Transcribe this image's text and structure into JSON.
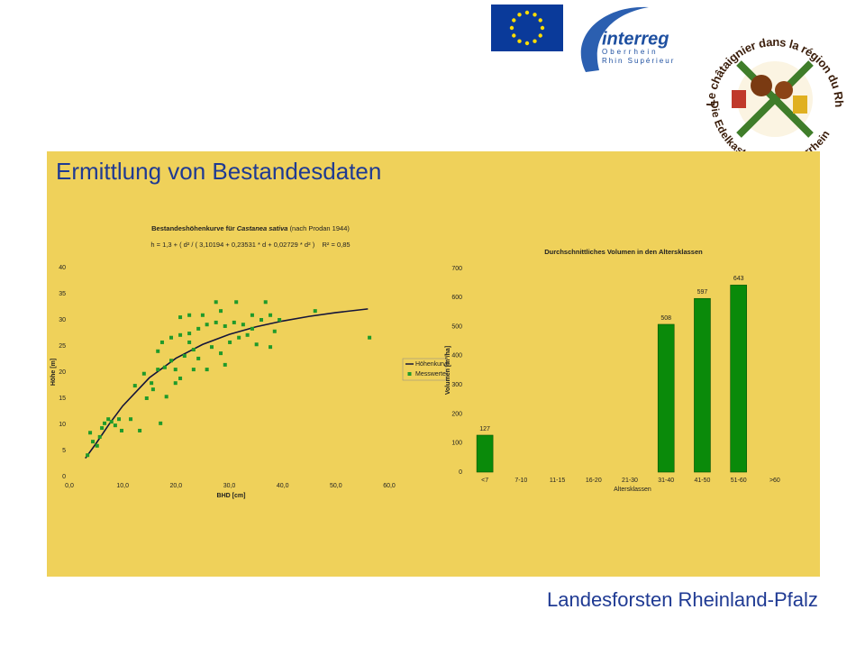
{
  "header": {
    "title": "Ermittlung von Bestandesdaten"
  },
  "footer": "Landesforsten Rheinland-Pfalz",
  "logos": {
    "interreg": "interreg",
    "interreg_region_de": "Oberrhein",
    "interreg_region_fr": "Rhin Supérieur",
    "chestnut_fr": "Le châtaignier dans la région du Rhin supérieur",
    "chestnut_de": "Die Edelkastanie am Oberrhein"
  },
  "chart_data": [
    {
      "type": "scatter",
      "title": "Bestandeshöhenkurve für",
      "title_species": "Castanea sativa",
      "title_note": "(nach Prodan 1944)",
      "subtitle": "h = 1,3 + ( d² / ( 3,10194 + 0,23531 * d + 0,02729 * d² )    R² = 0,85",
      "xlabel": "BHD [cm]",
      "ylabel": "Höhe [m]",
      "xlim": [
        0,
        60
      ],
      "xticks": [
        {
          "value": 0,
          "label": "0,0"
        },
        {
          "value": 10,
          "label": "10,0"
        },
        {
          "value": 20,
          "label": "20,0"
        },
        {
          "value": 30,
          "label": "30,0"
        },
        {
          "value": 40,
          "label": "40,0"
        },
        {
          "value": 50,
          "label": "50,0"
        },
        {
          "value": 60,
          "label": "60,0"
        }
      ],
      "ylim": [
        0,
        40
      ],
      "yticks": [
        0,
        5,
        10,
        15,
        20,
        25,
        30,
        35,
        40
      ],
      "grid": false,
      "legend": "right",
      "series": [
        {
          "name": "Höhenkurve",
          "type": "line",
          "color": "#14143a",
          "x": [
            3,
            5,
            7.5,
            10,
            15,
            20,
            25,
            30,
            35,
            40,
            45,
            50,
            56
          ],
          "values": [
            3.52,
            6.34,
            10.09,
            13.52,
            18.92,
            22.66,
            25.3,
            27.22,
            28.66,
            29.78,
            30.67,
            31.39,
            32.09
          ]
        },
        {
          "name": "Messwerte",
          "type": "scatter",
          "color": "#1f9a2a",
          "x": [
            3.4,
            4.4,
            3.9,
            5.2,
            5.7,
            6.1,
            6.6,
            7.3,
            7.9,
            8.6,
            9.3,
            9.8,
            11.5,
            13.2,
            17.1,
            12.3,
            14.5,
            14.0,
            15.4,
            16.6,
            17.9,
            19.1,
            19.9,
            20.8,
            21.6,
            22.5,
            23.3,
            24.2,
            16.6,
            17.4,
            19.1,
            20.8,
            22.5,
            24.2,
            25.8,
            27.5,
            29.2,
            30.9,
            32.6,
            34.3,
            36.0,
            20.8,
            22.5,
            25.0,
            27.5,
            28.4,
            31.3,
            34.3,
            36.8,
            37.7,
            39.4,
            46.1,
            56.3,
            26.7,
            28.4,
            30.1,
            31.8,
            33.4,
            35.1,
            37.7,
            38.5,
            29.2,
            25.8,
            23.3,
            19.9,
            18.2,
            15.7
          ],
          "values": [
            4.1,
            6.7,
            8.4,
            5.9,
            7.6,
            9.3,
            10.2,
            11.0,
            10.5,
            9.8,
            11.0,
            8.8,
            11.0,
            8.8,
            10.2,
            17.4,
            15.0,
            19.7,
            17.9,
            20.5,
            20.9,
            22.2,
            20.5,
            18.8,
            23.1,
            25.7,
            24.3,
            22.6,
            24.0,
            25.7,
            26.6,
            27.1,
            27.4,
            28.3,
            29.1,
            29.5,
            28.8,
            29.5,
            29.1,
            28.3,
            30.0,
            30.5,
            30.9,
            30.9,
            33.4,
            31.7,
            33.4,
            30.9,
            33.4,
            30.9,
            30.0,
            31.7,
            26.6,
            24.8,
            23.6,
            25.7,
            26.6,
            27.1,
            25.3,
            24.8,
            27.8,
            21.4,
            20.5,
            20.5,
            17.9,
            15.3,
            16.7
          ]
        }
      ]
    },
    {
      "type": "bar",
      "title": "Durchschnittliches Volumen in den Altersklassen",
      "xlabel": "Altersklassen",
      "ylabel": "Volumen [m³/ha]",
      "categories": [
        "<7",
        "7-10",
        "11-15",
        "16-20",
        "21-30",
        "31-40",
        "41-50",
        "51-60",
        ">60"
      ],
      "values": [
        127,
        null,
        null,
        null,
        null,
        508,
        597,
        643,
        null
      ],
      "color": "#0a8a0a",
      "ylim": [
        0,
        700
      ],
      "yticks": [
        0,
        100,
        200,
        300,
        400,
        500,
        600,
        700
      ],
      "grid": false
    }
  ]
}
